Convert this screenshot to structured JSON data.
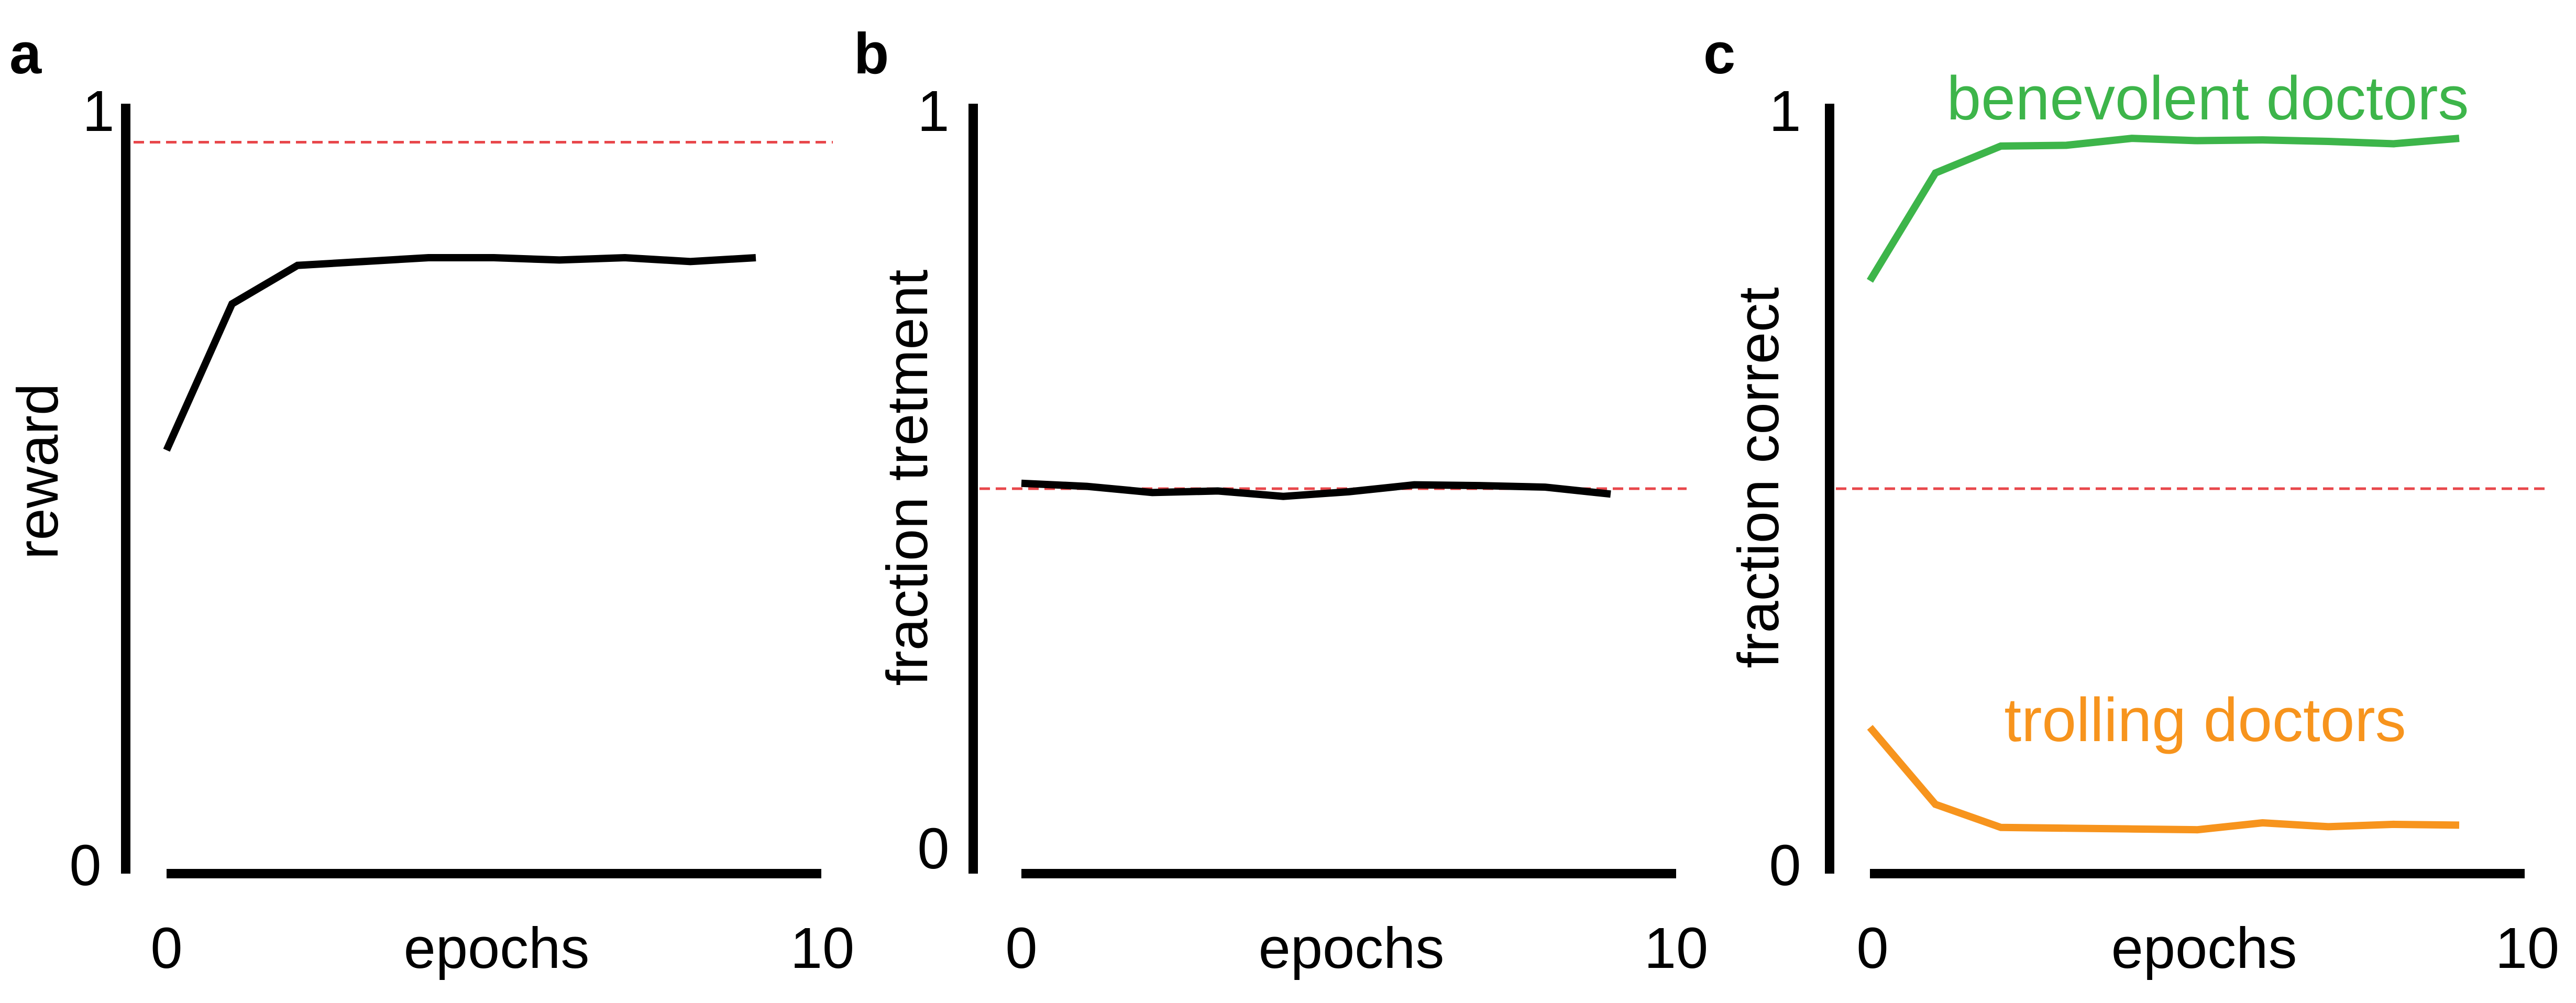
{
  "chart_data": [
    {
      "panel": "a",
      "type": "line",
      "xlabel": "epochs",
      "ylabel": "reward",
      "x_ticks": [
        "0",
        "10"
      ],
      "y_ticks": [
        "0",
        "1"
      ],
      "xlim": [
        0,
        10
      ],
      "ylim": [
        0,
        1
      ],
      "reference_line": {
        "y": 0.95,
        "color": "#e8474b",
        "style": "dashed"
      },
      "series": [
        {
          "color": "#000000",
          "x": [
            0,
            1,
            2,
            3,
            4,
            5,
            6,
            7,
            8,
            9
          ],
          "y": [
            0.55,
            0.74,
            0.79,
            0.795,
            0.8,
            0.8,
            0.797,
            0.8,
            0.795,
            0.8
          ]
        }
      ]
    },
    {
      "panel": "b",
      "type": "line",
      "xlabel": "epochs",
      "ylabel": "fraction tretment",
      "x_ticks": [
        "0",
        "10"
      ],
      "y_ticks": [
        "0",
        "1"
      ],
      "xlim": [
        0,
        10
      ],
      "ylim": [
        0,
        1
      ],
      "reference_line": {
        "y": 0.5,
        "color": "#e8474b",
        "style": "dashed"
      },
      "series": [
        {
          "color": "#000000",
          "x": [
            0,
            1,
            2,
            3,
            4,
            5,
            6,
            7,
            8,
            9
          ],
          "y": [
            0.507,
            0.503,
            0.495,
            0.497,
            0.49,
            0.496,
            0.505,
            0.504,
            0.502,
            0.493
          ]
        }
      ]
    },
    {
      "panel": "c",
      "type": "line",
      "xlabel": "epochs",
      "ylabel": "fraction correct",
      "x_ticks": [
        "0",
        "10"
      ],
      "y_ticks": [
        "0",
        "1"
      ],
      "xlim": [
        0,
        10
      ],
      "ylim": [
        0,
        1
      ],
      "reference_line": {
        "y": 0.5,
        "color": "#e8474b",
        "style": "dashed"
      },
      "series": [
        {
          "name": "benevolent doctors",
          "color": "#3db54a",
          "x": [
            0,
            1,
            2,
            3,
            4,
            5,
            6,
            7,
            8,
            9
          ],
          "y": [
            0.77,
            0.91,
            0.945,
            0.946,
            0.955,
            0.952,
            0.953,
            0.951,
            0.948,
            0.955
          ]
        },
        {
          "name": "trolling doctors",
          "color": "#f7941d",
          "x": [
            0,
            1,
            2,
            3,
            4,
            5,
            6,
            7,
            8,
            9
          ],
          "y": [
            0.19,
            0.09,
            0.06,
            0.059,
            0.058,
            0.057,
            0.066,
            0.061,
            0.064,
            0.063
          ]
        }
      ]
    }
  ]
}
